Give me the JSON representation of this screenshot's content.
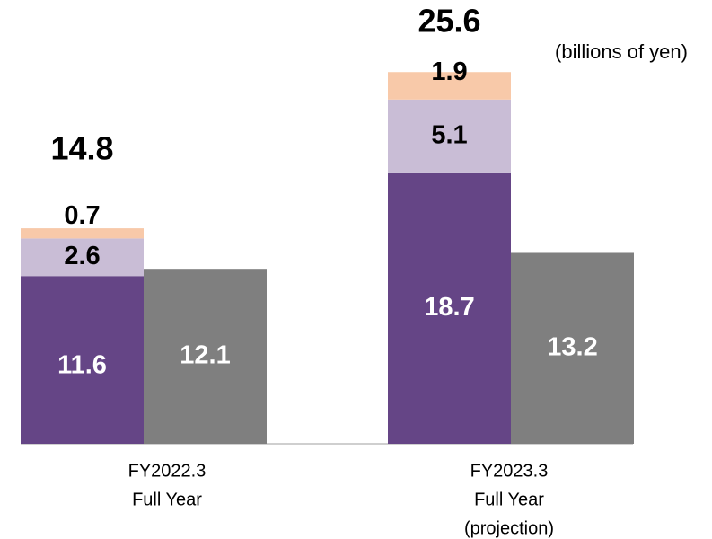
{
  "chart_data": {
    "type": "bar",
    "unit_note": "(billions of yen)",
    "categories": [
      [
        "FY2022.3",
        "Full Year"
      ],
      [
        "FY2023.3",
        "Full Year",
        "(projection)"
      ]
    ],
    "series": [
      {
        "color": "#654586",
        "values": [
          11.6,
          18.7
        ],
        "stack": 0
      },
      {
        "color": "#c9bdd6",
        "values": [
          2.6,
          5.1
        ],
        "stack": 0
      },
      {
        "color": "#f8c9a9",
        "values": [
          0.7,
          1.9
        ],
        "stack": 0
      },
      {
        "color": "#7f7f7f",
        "values": [
          12.1,
          13.2
        ],
        "stack": 1
      }
    ],
    "totals": [
      14.8,
      25.6
    ],
    "ylim": [
      0,
      30
    ]
  }
}
